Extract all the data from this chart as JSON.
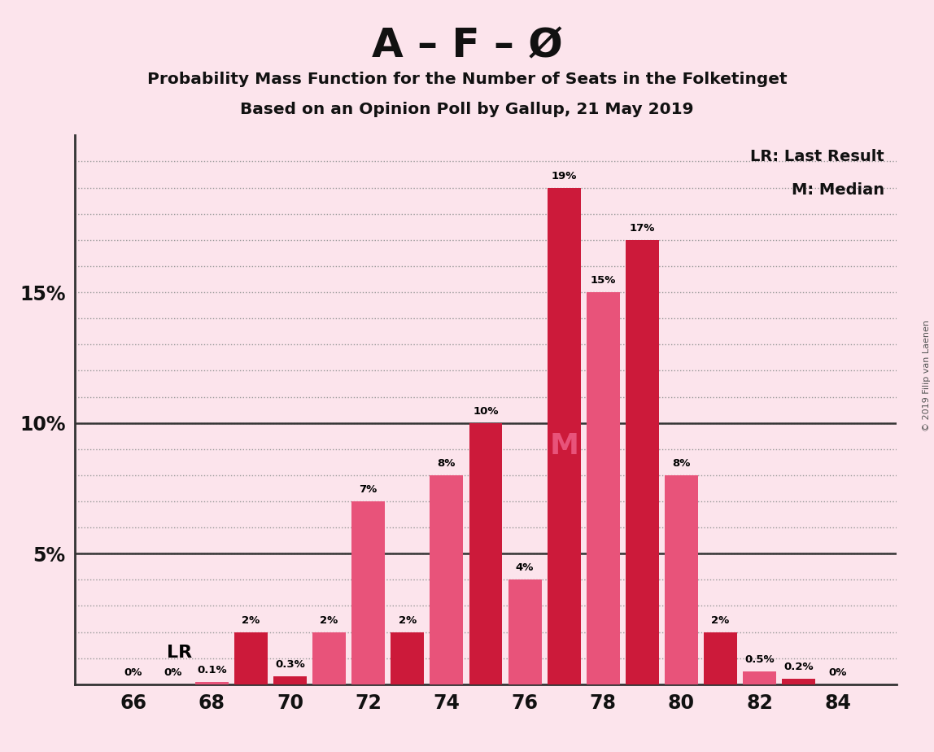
{
  "title1": "A – F – Ø",
  "title2": "Probability Mass Function for the Number of Seats in the Folketinget",
  "title3": "Based on an Opinion Poll by Gallup, 21 May 2019",
  "copyright": "© 2019 Filip van Laenen",
  "seats": [
    66,
    67,
    68,
    69,
    70,
    71,
    72,
    73,
    74,
    75,
    76,
    77,
    78,
    79,
    80,
    81,
    82,
    83,
    84
  ],
  "probabilities": [
    0.0,
    0.0,
    0.1,
    2.0,
    0.3,
    2.0,
    7.0,
    2.0,
    8.0,
    10.0,
    4.0,
    19.0,
    15.0,
    17.0,
    8.0,
    2.0,
    0.5,
    0.2,
    0.0
  ],
  "bar_colors": [
    "#e8537a",
    "#e8537a",
    "#e8537a",
    "#cc1a3a",
    "#cc1a3a",
    "#e8537a",
    "#e8537a",
    "#cc1a3a",
    "#e8537a",
    "#cc1a3a",
    "#e8537a",
    "#cc1a3a",
    "#e8537a",
    "#cc1a3a",
    "#e8537a",
    "#cc1a3a",
    "#e8537a",
    "#cc1a3a",
    "#e8537a"
  ],
  "background_color": "#fce4ec",
  "lr_seat": 68,
  "median_seat": 77,
  "ylim": [
    0,
    21
  ],
  "xtick_positions": [
    66,
    68,
    70,
    72,
    74,
    76,
    78,
    80,
    82,
    84
  ],
  "bar_width": 0.85,
  "label_color": "#000000",
  "dark_red": "#cc1a3a",
  "pink": "#e8537a",
  "grid_dotted_color": "#999999",
  "spine_color": "#333333"
}
